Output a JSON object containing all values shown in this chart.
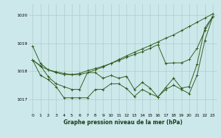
{
  "background_color": "#cce8ea",
  "grid_color": "#aacccc",
  "line_color": "#2d5a1b",
  "title": "Graphe pression niveau de la mer (hPa)",
  "xlim": [
    -0.5,
    23.5
  ],
  "ylim": [
    1016.5,
    1020.4
  ],
  "yticks": [
    1017,
    1018,
    1019,
    1020
  ],
  "xticks": [
    0,
    1,
    2,
    3,
    4,
    5,
    6,
    7,
    8,
    9,
    10,
    11,
    12,
    13,
    14,
    15,
    16,
    17,
    18,
    19,
    20,
    21,
    22,
    23
  ],
  "lines": {
    "line1": [
      1018.9,
      1018.28,
      1018.05,
      1017.95,
      1017.88,
      1017.88,
      1017.88,
      1017.95,
      1018.05,
      1018.15,
      1018.28,
      1018.42,
      1018.55,
      1018.68,
      1018.8,
      1018.92,
      1019.05,
      1019.18,
      1019.3,
      1019.45,
      1019.6,
      1019.75,
      1019.9,
      1020.05
    ],
    "line2": [
      1018.4,
      1017.85,
      1017.7,
      1017.45,
      1017.05,
      1017.05,
      1017.05,
      1017.05,
      1017.35,
      1017.35,
      1017.55,
      1017.55,
      1017.38,
      1017.1,
      1017.35,
      1017.2,
      1017.08,
      1017.35,
      1017.5,
      1017.35,
      1017.2,
      1017.85,
      1019.1,
      1019.95
    ],
    "line3": [
      1018.4,
      1018.2,
      1017.8,
      1017.55,
      1017.45,
      1017.35,
      1017.35,
      1017.95,
      1017.95,
      1017.75,
      1017.85,
      1017.75,
      1017.82,
      1017.35,
      1017.6,
      1017.4,
      1017.08,
      1017.42,
      1017.75,
      1017.4,
      1017.45,
      1018.25,
      1019.55,
      1019.95
    ],
    "line4": [
      1018.4,
      1018.18,
      1018.05,
      1017.98,
      1017.92,
      1017.88,
      1017.92,
      1018.02,
      1018.1,
      1018.18,
      1018.28,
      1018.38,
      1018.5,
      1018.6,
      1018.7,
      1018.82,
      1018.95,
      1018.28,
      1018.3,
      1018.3,
      1018.42,
      1018.82,
      1019.45,
      1019.95
    ]
  }
}
